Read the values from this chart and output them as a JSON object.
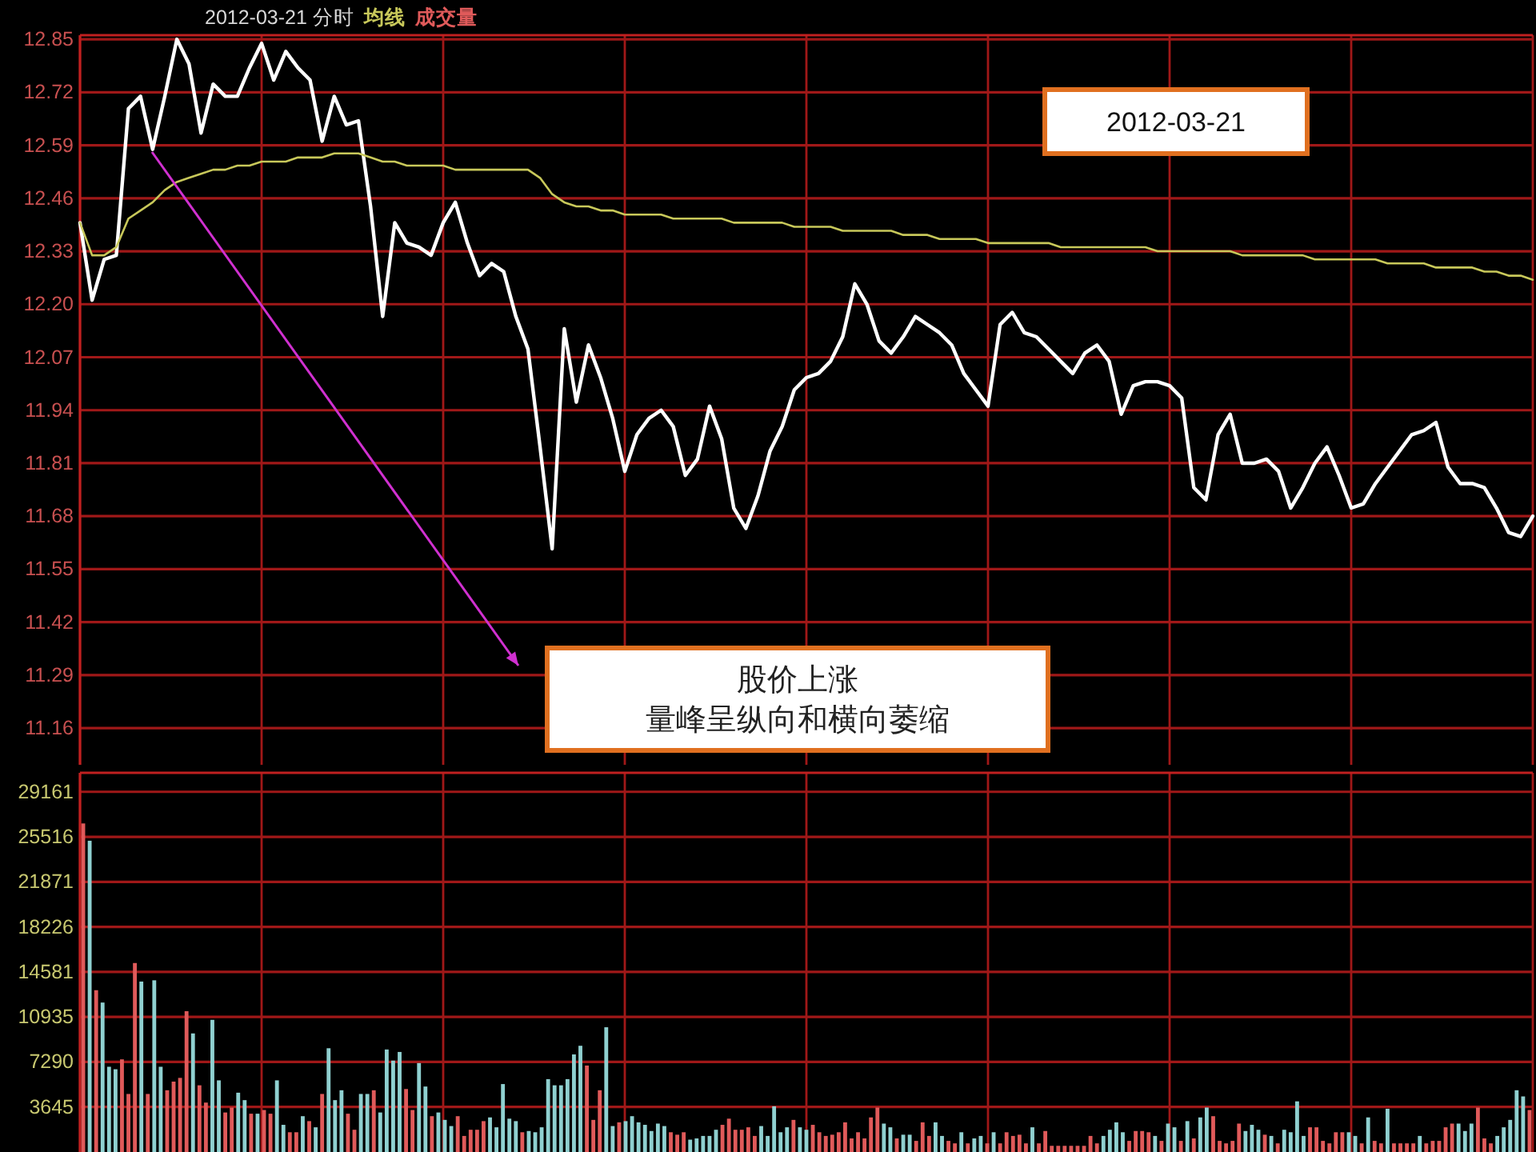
{
  "chart_data": [
    {
      "type": "line",
      "title": "2012-03-21 分时",
      "grid": true,
      "tick_labels": "y",
      "categories": [
        null,
        null,
        null,
        null,
        null,
        null,
        null,
        null,
        null,
        null,
        null,
        null,
        null,
        null,
        null,
        null,
        null,
        null,
        null,
        null,
        null,
        null,
        null,
        null,
        null,
        null,
        null,
        null,
        null,
        null,
        null,
        null,
        null,
        null,
        null,
        null,
        null,
        null,
        null,
        null,
        null,
        null,
        null,
        null,
        null,
        null,
        null,
        null,
        null,
        null,
        null,
        null,
        null,
        null,
        null,
        null,
        null,
        null,
        null,
        null,
        null,
        null,
        null,
        null,
        null,
        null,
        null,
        null,
        null,
        null,
        null,
        null,
        null,
        null,
        null,
        null,
        null,
        null,
        null,
        null,
        null,
        null,
        null,
        null,
        null,
        null,
        null,
        null,
        null,
        null,
        null,
        null,
        null,
        null,
        null,
        null,
        null,
        null,
        null,
        null,
        null,
        null,
        null,
        null,
        null,
        null,
        null,
        null,
        null,
        null,
        null,
        null,
        null,
        null,
        null,
        null,
        null,
        null,
        null,
        null,
        null
      ],
      "ylim": [
        11.07,
        12.86
      ],
      "yticks": [
        12.85,
        12.72,
        12.59,
        12.46,
        12.33,
        {
          "value": 12.2,
          "label": "12.20"
        },
        12.07,
        11.94,
        11.81,
        11.68,
        11.55,
        11.42,
        11.29,
        11.16
      ],
      "annotations": [
        "2012-03-21",
        "股价上涨",
        "量峰呈纵向和横向萎缩"
      ],
      "series": [
        {
          "color": "#ffffff",
          "values": [
            12.4,
            12.21,
            12.31,
            12.32,
            12.68,
            12.71,
            12.58,
            12.71,
            12.85,
            12.79,
            12.62,
            12.74,
            12.71,
            12.71,
            12.78,
            12.84,
            12.75,
            12.82,
            12.78,
            12.75,
            12.6,
            12.71,
            12.64,
            12.65,
            12.44,
            12.17,
            12.4,
            12.35,
            12.34,
            12.32,
            12.4,
            12.45,
            12.35,
            12.27,
            12.3,
            12.28,
            12.17,
            12.09,
            11.85,
            11.6,
            12.14,
            11.96,
            12.1,
            12.02,
            11.92,
            11.79,
            11.88,
            11.92,
            11.94,
            11.9,
            11.78,
            11.82,
            11.95,
            11.87,
            11.7,
            11.65,
            11.73,
            11.84,
            11.9,
            11.99,
            12.02,
            12.03,
            12.06,
            12.12,
            12.25,
            12.2,
            12.11,
            12.08,
            12.12,
            12.17,
            12.15,
            12.13,
            12.1,
            12.03,
            11.99,
            11.95,
            12.15,
            12.18,
            12.13,
            12.12,
            12.09,
            12.06,
            12.03,
            12.08,
            12.1,
            12.06,
            11.93,
            12.0,
            12.01,
            12.01,
            12.0,
            11.97,
            11.75,
            11.72,
            11.88,
            11.93,
            11.81,
            11.81,
            11.82,
            11.79,
            11.7,
            11.75,
            11.81,
            11.85,
            11.78,
            11.7,
            11.71,
            11.76,
            11.8,
            11.84,
            11.88,
            11.89,
            11.91,
            11.8,
            11.76,
            11.76,
            11.75,
            11.7,
            11.64,
            11.63,
            11.68
          ]
        },
        {
          "name": "均线",
          "color": "#c8c85a",
          "values": [
            12.4,
            12.32,
            12.32,
            12.34,
            12.41,
            12.43,
            12.45,
            12.48,
            12.5,
            12.51,
            12.52,
            12.53,
            12.53,
            12.54,
            12.54,
            12.55,
            12.55,
            12.55,
            12.56,
            12.56,
            12.56,
            12.57,
            12.57,
            12.57,
            12.56,
            12.55,
            12.55,
            12.54,
            12.54,
            12.54,
            12.54,
            12.53,
            12.53,
            12.53,
            12.53,
            12.53,
            12.53,
            12.53,
            12.51,
            12.47,
            12.45,
            12.44,
            12.44,
            12.43,
            12.43,
            12.42,
            12.42,
            12.42,
            12.42,
            12.41,
            12.41,
            12.41,
            12.41,
            12.41,
            12.4,
            12.4,
            12.4,
            12.4,
            12.4,
            12.39,
            12.39,
            12.39,
            12.39,
            12.38,
            12.38,
            12.38,
            12.38,
            12.38,
            12.37,
            12.37,
            12.37,
            12.36,
            12.36,
            12.36,
            12.36,
            12.35,
            12.35,
            12.35,
            12.35,
            12.35,
            12.35,
            12.34,
            12.34,
            12.34,
            12.34,
            12.34,
            12.34,
            12.34,
            12.34,
            12.33,
            12.33,
            12.33,
            12.33,
            12.33,
            12.33,
            12.33,
            12.32,
            12.32,
            12.32,
            12.32,
            12.32,
            12.32,
            12.31,
            12.31,
            12.31,
            12.31,
            12.31,
            12.31,
            12.3,
            12.3,
            12.3,
            12.3,
            12.29,
            12.29,
            12.29,
            12.29,
            12.28,
            12.28,
            12.27,
            12.27,
            12.26
          ]
        }
      ]
    },
    {
      "type": "bar",
      "grid": true,
      "tick_labels": "y",
      "categories": [
        null,
        null,
        null,
        null,
        null,
        null,
        null,
        null,
        null,
        null,
        null,
        null,
        null,
        null,
        null,
        null,
        null,
        null,
        null,
        null,
        null,
        null,
        null,
        null,
        null,
        null,
        null,
        null,
        null,
        null,
        null,
        null,
        null,
        null,
        null,
        null,
        null,
        null,
        null,
        null,
        null,
        null,
        null,
        null,
        null,
        null,
        null,
        null,
        null,
        null,
        null,
        null,
        null,
        null,
        null,
        null,
        null,
        null,
        null,
        null,
        null,
        null,
        null,
        null,
        null,
        null,
        null,
        null,
        null,
        null,
        null,
        null,
        null,
        null,
        null,
        null,
        null,
        null,
        null,
        null,
        null,
        null,
        null,
        null,
        null,
        null,
        null,
        null,
        null,
        null,
        null,
        null,
        null,
        null,
        null,
        null,
        null,
        null,
        null,
        null,
        null,
        null,
        null,
        null,
        null,
        null,
        null,
        null,
        null,
        null,
        null,
        null,
        null,
        null,
        null,
        null,
        null,
        null,
        null,
        null,
        null,
        null,
        null,
        null,
        null,
        null,
        null,
        null,
        null,
        null,
        null,
        null,
        null,
        null,
        null,
        null,
        null,
        null,
        null,
        null,
        null,
        null,
        null,
        null,
        null,
        null,
        null,
        null,
        null,
        null,
        null,
        null,
        null,
        null,
        null,
        null,
        null,
        null,
        null,
        null,
        null,
        null,
        null,
        null,
        null,
        null,
        null,
        null,
        null,
        null,
        null,
        null,
        null,
        null,
        null,
        null,
        null,
        null,
        null,
        null,
        null,
        null,
        null,
        null,
        null,
        null,
        null,
        null,
        null,
        null,
        null,
        null,
        null,
        null,
        null,
        null,
        null,
        null,
        null,
        null,
        null,
        null,
        null,
        null,
        null,
        null,
        null,
        null,
        null,
        null,
        null,
        null,
        null,
        null,
        null,
        null,
        null,
        null,
        null,
        null,
        null,
        null,
        null,
        null,
        null
      ],
      "ylim": [
        0,
        30700
      ],
      "yticks": [
        3645,
        7290,
        10935,
        14581,
        18226,
        21871,
        25516,
        29161
      ],
      "series": [
        {
          "name": "成交量",
          "values": [
            26600,
            25200,
            13100,
            12100,
            6900,
            6700,
            7500,
            4700,
            15300,
            13800,
            4700,
            13900,
            6900,
            5000,
            5700,
            6000,
            11400,
            9600,
            5400,
            4000,
            10700,
            5800,
            3200,
            3600,
            4800,
            4200,
            3100,
            3100,
            3400,
            3100,
            5800,
            2200,
            1600,
            1600,
            2900,
            2500,
            2000,
            4700,
            8400,
            4200,
            5000,
            3100,
            1800,
            4700,
            4700,
            5000,
            3200,
            8300,
            7400,
            8100,
            5100,
            3400,
            7200,
            5300,
            2900,
            3200,
            2600,
            2100,
            2900,
            1300,
            1800,
            1800,
            2500,
            2800,
            2000,
            5500,
            2700,
            2500,
            1600,
            1700,
            1600,
            2000,
            5900,
            5400,
            5400,
            5900,
            7900,
            8600,
            7000,
            2600,
            5000,
            10100,
            2100,
            2400,
            2500,
            2900,
            2400,
            2200,
            1700,
            2300,
            2100,
            1600,
            1400,
            1600,
            1000,
            1100,
            1300,
            1300,
            1800,
            2200,
            2700,
            1800,
            1800,
            2000,
            1300,
            2100,
            1300,
            3700,
            1600,
            2000,
            2600,
            2000,
            1800,
            2200,
            1600,
            1300,
            1400,
            1600,
            2400,
            1100,
            1600,
            1100,
            2800,
            3600,
            2300,
            2000,
            1100,
            1400,
            1400,
            900,
            2400,
            1300,
            2400,
            1300,
            900,
            700,
            1600,
            700,
            1100,
            1300,
            700,
            1600,
            700,
            1600,
            1300,
            1400,
            700,
            2000,
            700,
            1700,
            500,
            500,
            500,
            500,
            500,
            500,
            1300,
            700,
            1300,
            1800,
            2400,
            1600,
            900,
            1700,
            1700,
            1600,
            1300,
            900,
            2300,
            2000,
            900,
            2500,
            1100,
            2800,
            3600,
            2900,
            900,
            700,
            900,
            2300,
            1700,
            2200,
            1800,
            1400,
            1300,
            700,
            1800,
            1600,
            4100,
            1300,
            2000,
            2000,
            900,
            700,
            1600,
            1600,
            1600,
            1300,
            700,
            2800,
            900,
            700,
            3500,
            700,
            700,
            700,
            700,
            1300,
            700,
            900,
            900,
            2000,
            2300,
            2300,
            1700,
            2300,
            3600,
            1100,
            700,
            1300,
            2000,
            2600,
            5000,
            4500,
            3400
          ],
          "colors": [
            "#e05a5a",
            "#8fd0d0",
            "#e05a5a",
            "#8fd0d0",
            "#8fd0d0",
            "#8fd0d0",
            "#e05a5a",
            "#e05a5a",
            "#e05a5a",
            "#8fd0d0",
            "#e05a5a",
            "#8fd0d0",
            "#8fd0d0",
            "#e05a5a",
            "#e05a5a",
            "#e05a5a",
            "#e05a5a",
            "#8fd0d0",
            "#e05a5a",
            "#e05a5a",
            "#8fd0d0",
            "#8fd0d0",
            "#e05a5a",
            "#e05a5a",
            "#8fd0d0",
            "#8fd0d0",
            "#e05a5a",
            "#8fd0d0",
            "#e05a5a",
            "#e05a5a",
            "#8fd0d0",
            "#8fd0d0",
            "#e05a5a",
            "#e05a5a",
            "#8fd0d0",
            "#e05a5a",
            "#8fd0d0",
            "#e05a5a",
            "#8fd0d0",
            "#8fd0d0",
            "#8fd0d0",
            "#e05a5a",
            "#e05a5a",
            "#8fd0d0",
            "#8fd0d0",
            "#e05a5a",
            "#8fd0d0",
            "#8fd0d0",
            "#8fd0d0",
            "#8fd0d0",
            "#e05a5a",
            "#e05a5a",
            "#8fd0d0",
            "#8fd0d0",
            "#e05a5a",
            "#8fd0d0",
            "#8fd0d0",
            "#8fd0d0",
            "#e05a5a",
            "#e05a5a",
            "#e05a5a",
            "#e05a5a",
            "#e05a5a",
            "#8fd0d0",
            "#8fd0d0",
            "#8fd0d0",
            "#8fd0d0",
            "#8fd0d0",
            "#e05a5a",
            "#8fd0d0",
            "#8fd0d0",
            "#8fd0d0",
            "#8fd0d0",
            "#8fd0d0",
            "#8fd0d0",
            "#8fd0d0",
            "#8fd0d0",
            "#8fd0d0",
            "#e05a5a",
            "#e05a5a",
            "#e05a5a",
            "#8fd0d0",
            "#8fd0d0",
            "#e05a5a",
            "#8fd0d0",
            "#8fd0d0",
            "#8fd0d0",
            "#8fd0d0",
            "#8fd0d0",
            "#8fd0d0",
            "#8fd0d0",
            "#e05a5a",
            "#e05a5a",
            "#e05a5a",
            "#8fd0d0",
            "#8fd0d0",
            "#8fd0d0",
            "#8fd0d0",
            "#8fd0d0",
            "#e05a5a",
            "#e05a5a",
            "#e05a5a",
            "#e05a5a",
            "#e05a5a",
            "#e05a5a",
            "#8fd0d0",
            "#8fd0d0",
            "#8fd0d0",
            "#8fd0d0",
            "#8fd0d0",
            "#e05a5a",
            "#8fd0d0",
            "#8fd0d0",
            "#e05a5a",
            "#e05a5a",
            "#e05a5a",
            "#e05a5a",
            "#e05a5a",
            "#e05a5a",
            "#e05a5a",
            "#e05a5a",
            "#e05a5a",
            "#e05a5a",
            "#e05a5a",
            "#8fd0d0",
            "#8fd0d0",
            "#e05a5a",
            "#8fd0d0",
            "#8fd0d0",
            "#e05a5a",
            "#e05a5a",
            "#e05a5a",
            "#8fd0d0",
            "#8fd0d0",
            "#e05a5a",
            "#e05a5a",
            "#8fd0d0",
            "#e05a5a",
            "#8fd0d0",
            "#8fd0d0",
            "#e05a5a",
            "#8fd0d0",
            "#e05a5a",
            "#e05a5a",
            "#e05a5a",
            "#e05a5a",
            "#e05a5a",
            "#8fd0d0",
            "#e05a5a",
            "#e05a5a",
            "#e05a5a",
            "#e05a5a",
            "#e05a5a",
            "#e05a5a",
            "#e05a5a",
            "#e05a5a",
            "#e05a5a",
            "#e05a5a",
            "#8fd0d0",
            "#8fd0d0",
            "#8fd0d0",
            "#8fd0d0",
            "#e05a5a",
            "#e05a5a",
            "#e05a5a",
            "#e05a5a",
            "#8fd0d0",
            "#e05a5a",
            "#8fd0d0",
            "#8fd0d0",
            "#e05a5a",
            "#8fd0d0",
            "#e05a5a",
            "#8fd0d0",
            "#8fd0d0",
            "#e05a5a",
            "#e05a5a",
            "#e05a5a",
            "#e05a5a",
            "#e05a5a",
            "#8fd0d0",
            "#8fd0d0",
            "#8fd0d0",
            "#e05a5a",
            "#8fd0d0",
            "#e05a5a",
            "#8fd0d0",
            "#8fd0d0",
            "#8fd0d0",
            "#8fd0d0",
            "#e05a5a",
            "#e05a5a",
            "#e05a5a",
            "#e05a5a",
            "#e05a5a",
            "#e05a5a",
            "#8fd0d0",
            "#8fd0d0",
            "#e05a5a",
            "#8fd0d0",
            "#e05a5a",
            "#e05a5a",
            "#8fd0d0",
            "#e05a5a",
            "#e05a5a",
            "#e05a5a",
            "#e05a5a",
            "#8fd0d0",
            "#e05a5a",
            "#e05a5a",
            "#e05a5a",
            "#e05a5a",
            "#e05a5a",
            "#8fd0d0",
            "#8fd0d0",
            "#8fd0d0",
            "#e05a5a",
            "#e05a5a",
            "#e05a5a",
            "#8fd0d0",
            "#8fd0d0",
            "#8fd0d0",
            "#8fd0d0",
            "#8fd0d0",
            "#e05a5a"
          ]
        }
      ]
    }
  ]
}
